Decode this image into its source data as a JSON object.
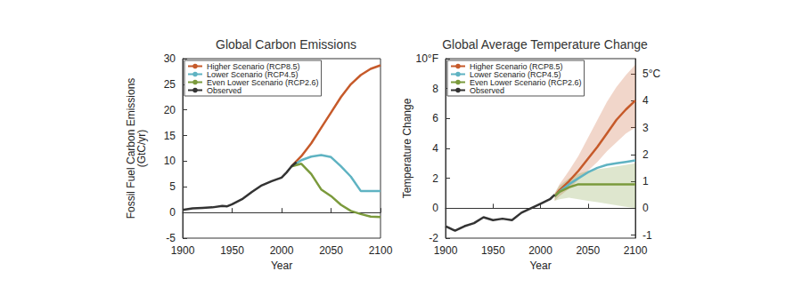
{
  "chart_data": [
    {
      "type": "line",
      "title": "Global Carbon Emissions",
      "x_label": "Year",
      "y_label": "Fossil Fuel Carbon Emissions\n(GtC/yr)",
      "xlim": [
        1900,
        2100
      ],
      "xticks": [
        1900,
        1950,
        2000,
        2050,
        2100
      ],
      "ylim": [
        -5,
        30
      ],
      "yticks": [
        -5,
        0,
        5,
        10,
        15,
        20,
        25,
        30
      ],
      "grid": false,
      "legend": "upper left",
      "series": [
        {
          "name": "Higher Scenario (RCP8.5)",
          "color": "#c65a2a",
          "x": [
            2010,
            2020,
            2030,
            2040,
            2050,
            2060,
            2070,
            2080,
            2090,
            2100
          ],
          "values": [
            9.0,
            11.0,
            13.5,
            16.5,
            19.5,
            22.5,
            25.0,
            26.8,
            28.0,
            28.7
          ]
        },
        {
          "name": "Lower Scenario (RCP4.5)",
          "color": "#5fb3c2",
          "x": [
            2010,
            2020,
            2030,
            2040,
            2050,
            2060,
            2070,
            2080,
            2090,
            2100
          ],
          "values": [
            9.0,
            10.2,
            10.9,
            11.2,
            10.8,
            9.0,
            7.0,
            4.2,
            4.2,
            4.2
          ]
        },
        {
          "name": "Even Lower Scenario (RCP2.6)",
          "color": "#7b9a3c",
          "x": [
            2010,
            2020,
            2030,
            2040,
            2050,
            2060,
            2070,
            2080,
            2090,
            2100
          ],
          "values": [
            9.0,
            9.5,
            7.5,
            4.5,
            3.2,
            1.5,
            0.3,
            -0.3,
            -0.8,
            -0.9
          ]
        },
        {
          "name": "Observed",
          "color": "#333333",
          "x": [
            1900,
            1910,
            1920,
            1930,
            1940,
            1945,
            1950,
            1960,
            1970,
            1980,
            1990,
            2000,
            2005,
            2010,
            2015
          ],
          "values": [
            0.5,
            0.8,
            0.9,
            1.0,
            1.3,
            1.2,
            1.6,
            2.6,
            4.0,
            5.3,
            6.1,
            6.8,
            7.8,
            9.0,
            9.8
          ]
        }
      ]
    },
    {
      "type": "line",
      "title": "Global Average Temperature Change",
      "x_label": "Year",
      "y_label": "Temperature Change",
      "xlim": [
        1900,
        2100
      ],
      "xticks": [
        1900,
        1950,
        2000,
        2050,
        2100
      ],
      "ylim": [
        -2,
        10
      ],
      "yticks": [
        -2,
        0,
        2,
        4,
        6,
        8,
        {
          "value": 10,
          "label": "10°F"
        }
      ],
      "y2lim": [
        -1.11,
        5.56
      ],
      "y2ticks": [
        -1,
        0,
        1,
        2,
        3,
        4,
        {
          "value": 5,
          "label": "5°C"
        }
      ],
      "grid": false,
      "legend": "upper left",
      "series": [
        {
          "name": "Higher Scenario (RCP8.5)",
          "color": "#c65a2a",
          "x": [
            2015,
            2020,
            2030,
            2040,
            2050,
            2060,
            2070,
            2080,
            2090,
            2100
          ],
          "values": [
            0.8,
            1.2,
            1.8,
            2.5,
            3.3,
            4.1,
            5.0,
            5.9,
            6.6,
            7.2
          ],
          "lower": [
            0.5,
            0.8,
            1.3,
            1.9,
            2.5,
            3.1,
            3.8,
            4.4,
            5.0,
            5.4
          ],
          "upper": [
            1.0,
            1.6,
            2.5,
            3.5,
            4.7,
            5.9,
            7.1,
            8.1,
            8.9,
            9.6
          ]
        },
        {
          "name": "Lower Scenario (RCP4.5)",
          "color": "#5fb3c2",
          "x": [
            2015,
            2020,
            2030,
            2040,
            2050,
            2060,
            2070,
            2080,
            2090,
            2100
          ],
          "values": [
            0.8,
            1.1,
            1.6,
            2.0,
            2.4,
            2.7,
            2.9,
            3.0,
            3.1,
            3.2
          ]
        },
        {
          "name": "Even Lower Scenario (RCP2.6)",
          "color": "#7b9a3c",
          "x": [
            2015,
            2020,
            2030,
            2040,
            2050,
            2060,
            2070,
            2080,
            2090,
            2100
          ],
          "values": [
            0.8,
            1.1,
            1.4,
            1.6,
            1.6,
            1.6,
            1.6,
            1.6,
            1.6,
            1.6
          ],
          "lower": [
            0.5,
            0.6,
            0.7,
            0.6,
            0.5,
            0.4,
            0.3,
            0.2,
            0.1,
            0.0
          ],
          "upper": [
            1.0,
            1.5,
            2.0,
            2.3,
            2.5,
            2.6,
            2.7,
            2.8,
            2.9,
            3.0
          ]
        },
        {
          "name": "Observed",
          "color": "#333333",
          "x": [
            1900,
            1910,
            1920,
            1930,
            1940,
            1950,
            1960,
            1970,
            1980,
            1990,
            2000,
            2010,
            2015
          ],
          "values": [
            -1.2,
            -1.5,
            -1.2,
            -1.0,
            -0.6,
            -0.8,
            -0.7,
            -0.8,
            -0.3,
            0.0,
            0.3,
            0.6,
            0.9
          ]
        }
      ]
    }
  ]
}
